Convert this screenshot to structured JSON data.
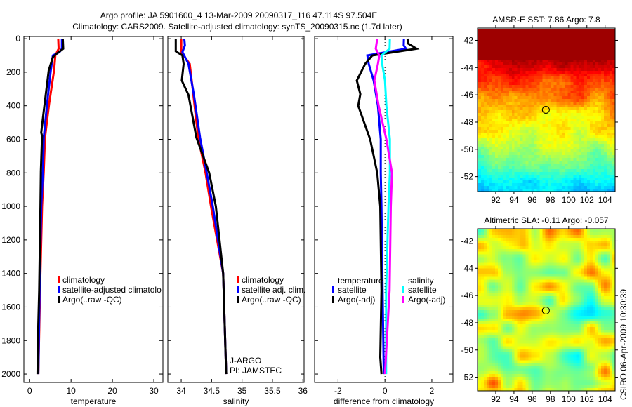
{
  "title": {
    "line1": "Argo profile: JA 5901600_4 13-Mar-2009 20090317_116 47.114S 97.504E",
    "line2": "Climatology: CARS2009. Satellite-adjusted climatology: synTS_20090315.nc (1.7d later)"
  },
  "footer_stamp": "CSIRO 06-Apr-2009 10:30:39",
  "float_info": {
    "program": "J-ARGO",
    "pi": "PI: JAMSTEC"
  },
  "chart_data": [
    {
      "type": "line",
      "name": "temperature-profile",
      "xlabel": "temperature",
      "ylabel": "",
      "xlim": [
        -1.4,
        32.2
      ],
      "ylim": [
        2050,
        -13
      ],
      "xticks": [
        "0",
        "10",
        "20",
        "30"
      ],
      "xtick_values": [
        0,
        10,
        20,
        30
      ],
      "yticks": [
        "0",
        "200",
        "400",
        "600",
        "800",
        "1000",
        "1200",
        "1400",
        "1600",
        "1800",
        "2000"
      ],
      "ytick_values": [
        0,
        200,
        400,
        600,
        800,
        1000,
        1200,
        1400,
        1600,
        1800,
        2000
      ],
      "legend": [
        "climatology",
        "satellite-adjusted climatolo",
        "Argo(..raw -QC)"
      ],
      "series": [
        {
          "name": "climatology",
          "color": "#ff0000",
          "depth": [
            0,
            60,
            100,
            190,
            390,
            590,
            790,
            1000,
            1500,
            2000
          ],
          "values": [
            6.9,
            7.0,
            6.2,
            5.9,
            4.7,
            3.7,
            3.4,
            3.0,
            2.5,
            2.1
          ]
        },
        {
          "name": "satellite-adjusted climatology",
          "color": "#0000ff",
          "depth": [
            0,
            60,
            80,
            100,
            190,
            390,
            590,
            790,
            1000,
            1500,
            2000
          ],
          "values": [
            7.8,
            7.8,
            7.2,
            5.6,
            5.1,
            4.2,
            3.4,
            3.2,
            2.8,
            2.4,
            2.1
          ]
        },
        {
          "name": "Argo(..raw -QC)",
          "color": "#000000",
          "depth": [
            0,
            60,
            90,
            110,
            190,
            390,
            560,
            580,
            790,
            1000,
            1500,
            1800,
            2000
          ],
          "values": [
            8.0,
            8.1,
            6.5,
            5.6,
            4.6,
            3.6,
            2.8,
            3.0,
            2.7,
            2.6,
            2.3,
            2.0,
            1.9
          ]
        }
      ]
    },
    {
      "type": "line",
      "name": "salinity-profile",
      "xlabel": "salinity",
      "xlim": [
        33.78,
        36.02
      ],
      "ylim": [
        2050,
        -13
      ],
      "xticks": [
        "34",
        "34.5",
        "35",
        "35.5",
        "36"
      ],
      "xtick_values": [
        34,
        34.5,
        35,
        35.5,
        36
      ],
      "legend": [
        "climatology",
        "satellite adj. clim.",
        "Argo(..raw -QC)"
      ],
      "series": [
        {
          "name": "climatology",
          "color": "#ff0000",
          "depth": [
            0,
            80,
            150,
            335,
            590,
            800,
            1000,
            1400,
            2000
          ],
          "values": [
            34.0,
            34.0,
            34.14,
            34.2,
            34.28,
            34.4,
            34.49,
            34.69,
            34.74
          ]
        },
        {
          "name": "satellite adj. clim.",
          "color": "#0000ff",
          "depth": [
            0,
            40,
            80,
            150,
            335,
            590,
            800,
            1000,
            1400,
            2000
          ],
          "values": [
            34.05,
            34.06,
            34.02,
            34.12,
            34.21,
            34.31,
            34.42,
            34.52,
            34.69,
            34.74
          ]
        },
        {
          "name": "Argo(..raw -QC)",
          "color": "#000000",
          "depth": [
            0,
            75,
            100,
            150,
            250,
            335,
            590,
            800,
            1000,
            1400,
            2000
          ],
          "values": [
            33.91,
            33.91,
            34.02,
            34.04,
            34.01,
            34.12,
            34.25,
            34.46,
            34.57,
            34.69,
            34.74
          ]
        }
      ]
    },
    {
      "type": "line",
      "name": "difference-profile",
      "xlabel": "difference from climatology",
      "xlim": [
        -3.0,
        2.9
      ],
      "ylim": [
        2050,
        -13
      ],
      "xticks": [
        "-2",
        "0",
        "2"
      ],
      "xtick_values": [
        -2,
        0,
        2
      ],
      "legend_groups": [
        {
          "title": "temperature",
          "entries": [
            "satellite",
            "Argo(-adj)"
          ]
        },
        {
          "title": "salinity",
          "entries": [
            "satellite",
            "Argo(-adj)"
          ]
        }
      ],
      "series": [
        {
          "name": "temperature satellite",
          "color": "#0000ff",
          "depth": [
            0,
            40,
            60,
            100,
            150,
            250,
            400,
            600,
            800,
            1000,
            1500,
            2000
          ],
          "values": [
            0.81,
            0.8,
            0.9,
            -0.75,
            -0.69,
            -0.48,
            -0.3,
            -0.18,
            -0.18,
            -0.15,
            -0.1,
            -0.05
          ]
        },
        {
          "name": "temperature Argo(-adj)",
          "color": "#000000",
          "depth": [
            0,
            30,
            60,
            100,
            150,
            250,
            330,
            400,
            600,
            800,
            1000,
            1500,
            1900,
            2000
          ],
          "values": [
            0.96,
            1.0,
            1.35,
            -0.54,
            -0.84,
            -1.2,
            -1.05,
            -1.14,
            -0.63,
            -0.33,
            -0.2,
            -0.15,
            -0.2,
            -0.15
          ]
        },
        {
          "name": "salinity satellite",
          "color": "#00ffff",
          "depth": [
            0,
            60,
            100,
            150,
            250,
            400,
            600,
            800,
            1000,
            1500,
            2000
          ],
          "values": [
            0.21,
            0.2,
            -0.15,
            -0.12,
            0.0,
            0.06,
            0.21,
            0.21,
            0.15,
            0.05,
            0.05
          ]
        },
        {
          "name": "salinity Argo(-adj)",
          "color": "#ff00ff",
          "depth": [
            0,
            60,
            100,
            150,
            250,
            400,
            600,
            800,
            1000,
            1500,
            2000
          ],
          "values": [
            -0.33,
            -0.39,
            -0.24,
            -0.3,
            -0.45,
            -0.27,
            0.06,
            0.3,
            0.25,
            0.2,
            0.0
          ]
        }
      ]
    },
    {
      "type": "heatmap",
      "name": "sst-map",
      "title": "AMSR-E SST: 7.86 Argo: 7.8",
      "xlim": [
        90.0,
        105.1
      ],
      "ylim": [
        -53.1,
        -41.1
      ],
      "xticks": [
        "92",
        "94",
        "96",
        "98",
        "100",
        "102",
        "104"
      ],
      "xtick_values": [
        92,
        94,
        96,
        98,
        100,
        102,
        104
      ],
      "yticks": [
        "-42",
        "-44",
        "-46",
        "-48",
        "-50",
        "-52"
      ],
      "ytick_values": [
        -42,
        -44,
        -46,
        -48,
        -50,
        -52
      ],
      "marker": {
        "lon": 97.5,
        "lat": -47.1
      }
    },
    {
      "type": "heatmap",
      "name": "sla-map",
      "title": "Altimetric SLA: -0.11 Argo: -0.057",
      "xlim": [
        90.0,
        105.1
      ],
      "ylim": [
        -53.0,
        -41.1
      ],
      "xticks": [
        "92",
        "94",
        "96",
        "98",
        "100",
        "102",
        "104"
      ],
      "xtick_values": [
        92,
        94,
        96,
        98,
        100,
        102,
        104
      ],
      "yticks": [
        "-42",
        "-44",
        "-46",
        "-48",
        "-50",
        "-52"
      ],
      "ytick_values": [
        -42,
        -44,
        -46,
        -48,
        -50,
        -52
      ],
      "marker": {
        "lon": 97.5,
        "lat": -47.1
      }
    }
  ]
}
